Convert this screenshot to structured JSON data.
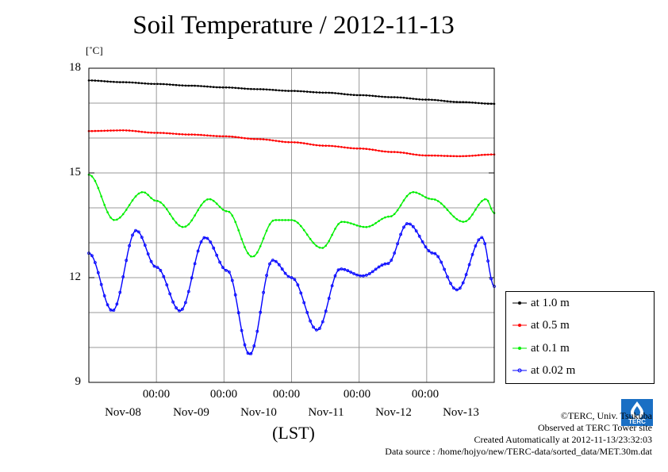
{
  "title": "Soil Temperature / 2012-11-13",
  "unit_label": "[˚C]",
  "xlabel": "(LST)",
  "x_time_labels": [
    "00:00",
    "00:00",
    "00:00",
    "00:00",
    "00:00"
  ],
  "x_date_labels": [
    "Nov-08",
    "Nov-09",
    "Nov-10",
    "Nov-11",
    "Nov-12",
    "Nov-13"
  ],
  "credits": {
    "copyright": "©TERC, Univ. Tsukuba",
    "site": "Observed at TERC Tower site",
    "created": "Created Automatically at 2012-11-13/23:32:03",
    "source": "Data source : /home/hojyo/new/TERC-data/sorted_data/MET.30m.dat"
  },
  "logo_text": "TERC",
  "chart_data": {
    "type": "line",
    "title": "Soil Temperature / 2012-11-13",
    "xlabel": "(LST)",
    "ylabel": "[˚C]",
    "ylim": [
      9,
      18
    ],
    "yticks": [
      9,
      12,
      15,
      18
    ],
    "xlim": [
      0,
      6
    ],
    "grid": true,
    "legend_position": "right",
    "series": [
      {
        "name": "at 1.0 m",
        "color": "#000000",
        "x": [
          0,
          0.5,
          1,
          1.5,
          2,
          2.5,
          3,
          3.5,
          4,
          4.5,
          5,
          5.5,
          6
        ],
        "y": [
          17.65,
          17.6,
          17.55,
          17.5,
          17.45,
          17.4,
          17.35,
          17.3,
          17.23,
          17.17,
          17.1,
          17.03,
          16.98
        ]
      },
      {
        "name": "at 0.5 m",
        "color": "#ff0000",
        "x": [
          0,
          0.5,
          1,
          1.5,
          2,
          2.5,
          3,
          3.5,
          4,
          4.5,
          5,
          5.5,
          6
        ],
        "y": [
          16.2,
          16.22,
          16.15,
          16.1,
          16.05,
          15.97,
          15.88,
          15.78,
          15.7,
          15.6,
          15.5,
          15.48,
          15.53
        ]
      },
      {
        "name": "at 0.1 m",
        "color": "#00ee00",
        "x": [
          0,
          0.38,
          0.8,
          1.0,
          1.4,
          1.78,
          2.05,
          2.42,
          2.75,
          3.0,
          3.45,
          3.75,
          4.1,
          4.45,
          4.8,
          5.08,
          5.55,
          5.88,
          6.0
        ],
        "y": [
          14.95,
          13.65,
          14.45,
          14.2,
          13.45,
          14.25,
          13.9,
          12.6,
          13.65,
          13.65,
          12.85,
          13.6,
          13.45,
          13.75,
          14.45,
          14.25,
          13.6,
          14.25,
          13.85
        ]
      },
      {
        "name": "at 0.02 m",
        "color": "#0000ff",
        "x": [
          0,
          0.35,
          0.7,
          1.0,
          1.35,
          1.72,
          2.05,
          2.38,
          2.72,
          3.0,
          3.38,
          3.72,
          4.05,
          4.42,
          4.72,
          5.1,
          5.45,
          5.82,
          6.0
        ],
        "y": [
          12.7,
          11.05,
          13.35,
          12.3,
          11.05,
          13.15,
          12.2,
          9.8,
          12.5,
          12.0,
          10.5,
          12.25,
          12.05,
          12.4,
          13.55,
          12.7,
          11.65,
          13.15,
          11.75
        ]
      }
    ]
  }
}
